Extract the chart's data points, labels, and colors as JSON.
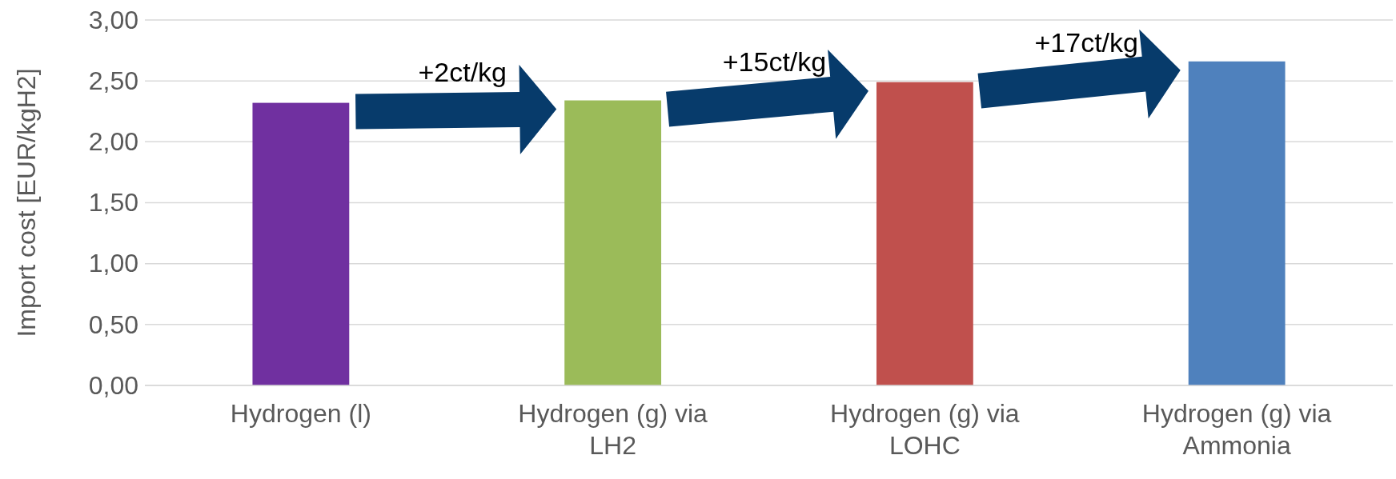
{
  "chart_data": {
    "type": "bar",
    "ylabel": "Import cost [EUR/kgH2]",
    "categories": [
      "Hydrogen (l)",
      "Hydrogen (g) via LH2",
      "Hydrogen (g) via LOHC",
      "Hydrogen (g) via Ammonia"
    ],
    "values": [
      2.32,
      2.34,
      2.49,
      2.66
    ],
    "colors": [
      "#7030a0",
      "#9bbb59",
      "#c0504d",
      "#4f81bd"
    ],
    "ylim": [
      0,
      3
    ],
    "yticks": [
      {
        "value": 0,
        "label": "0,00"
      },
      {
        "value": 0.5,
        "label": "0,50"
      },
      {
        "value": 1,
        "label": "1,00"
      },
      {
        "value": 1.5,
        "label": "1,50"
      },
      {
        "value": 2,
        "label": "2,00"
      },
      {
        "value": 2.5,
        "label": "2,50"
      },
      {
        "value": 3,
        "label": "3,00"
      }
    ],
    "grid": "y",
    "annotations": [
      "+2ct/kg",
      "+15ct/kg",
      "+17ct/kg"
    ]
  }
}
